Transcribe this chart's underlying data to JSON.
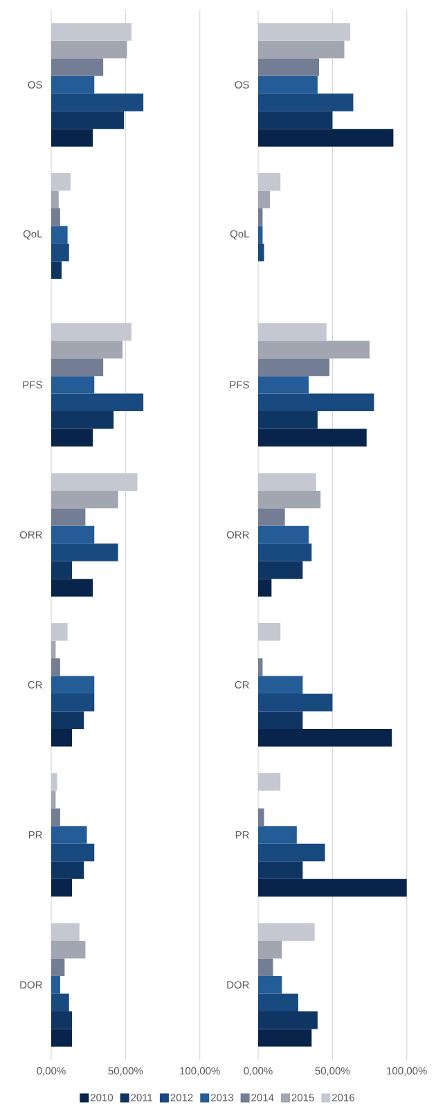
{
  "chart_data": [
    {
      "type": "bar",
      "orientation": "horizontal",
      "categories": [
        "OS",
        "QoL",
        "PFS",
        "ORR",
        "CR",
        "PR",
        "DOR"
      ],
      "xlim": [
        0,
        100
      ],
      "xticks": [
        {
          "value": 0,
          "label": "0,00%"
        },
        {
          "value": 50,
          "label": "50,00%"
        },
        {
          "value": 100,
          "label": "100,00%"
        }
      ],
      "grid": "x",
      "legend": "bottom",
      "series": [
        {
          "name": "2010",
          "color": "#08244a",
          "values": [
            28,
            0,
            28,
            28,
            14,
            14,
            14
          ]
        },
        {
          "name": "2011",
          "color": "#0f3563",
          "values": [
            49,
            7,
            42,
            14,
            22,
            22,
            14
          ]
        },
        {
          "name": "2012",
          "color": "#18497f",
          "values": [
            62,
            12,
            62,
            45,
            29,
            29,
            12
          ]
        },
        {
          "name": "2013",
          "color": "#235c96",
          "values": [
            29,
            11,
            29,
            29,
            29,
            24,
            6
          ]
        },
        {
          "name": "2014",
          "color": "#737e94",
          "values": [
            35,
            6,
            35,
            23,
            6,
            6,
            9
          ]
        },
        {
          "name": "2015",
          "color": "#a2a6b1",
          "values": [
            51,
            5,
            48,
            45,
            3,
            3,
            23
          ]
        },
        {
          "name": "2016",
          "color": "#c5c8d0",
          "values": [
            54,
            13,
            54,
            58,
            11,
            4,
            19
          ]
        }
      ]
    },
    {
      "type": "bar",
      "orientation": "horizontal",
      "categories": [
        "OS",
        "QoL",
        "PFS",
        "ORR",
        "CR",
        "PR",
        "DOR"
      ],
      "xlim": [
        0,
        100
      ],
      "xticks": [
        {
          "value": 0,
          "label": "0,00%"
        },
        {
          "value": 50,
          "label": "50,00%"
        },
        {
          "value": 100,
          "label": "100,00%"
        }
      ],
      "grid": "x",
      "series": [
        {
          "color": "#08244a",
          "values": [
            91,
            0,
            73,
            9,
            90,
            100,
            36
          ]
        },
        {
          "color": "#0f3563",
          "values": [
            50,
            0,
            40,
            30,
            30,
            30,
            40
          ]
        },
        {
          "color": "#18497f",
          "values": [
            64,
            4,
            78,
            36,
            50,
            45,
            27
          ]
        },
        {
          "color": "#235c96",
          "values": [
            40,
            3,
            34,
            34,
            30,
            26,
            16
          ]
        },
        {
          "color": "#737e94",
          "values": [
            41,
            3,
            48,
            18,
            3,
            4,
            10
          ]
        },
        {
          "color": "#a2a6b1",
          "values": [
            58,
            8,
            75,
            42,
            0,
            0,
            16
          ]
        },
        {
          "color": "#c5c8d0",
          "values": [
            62,
            15,
            46,
            39,
            15,
            15,
            38
          ]
        }
      ]
    }
  ]
}
